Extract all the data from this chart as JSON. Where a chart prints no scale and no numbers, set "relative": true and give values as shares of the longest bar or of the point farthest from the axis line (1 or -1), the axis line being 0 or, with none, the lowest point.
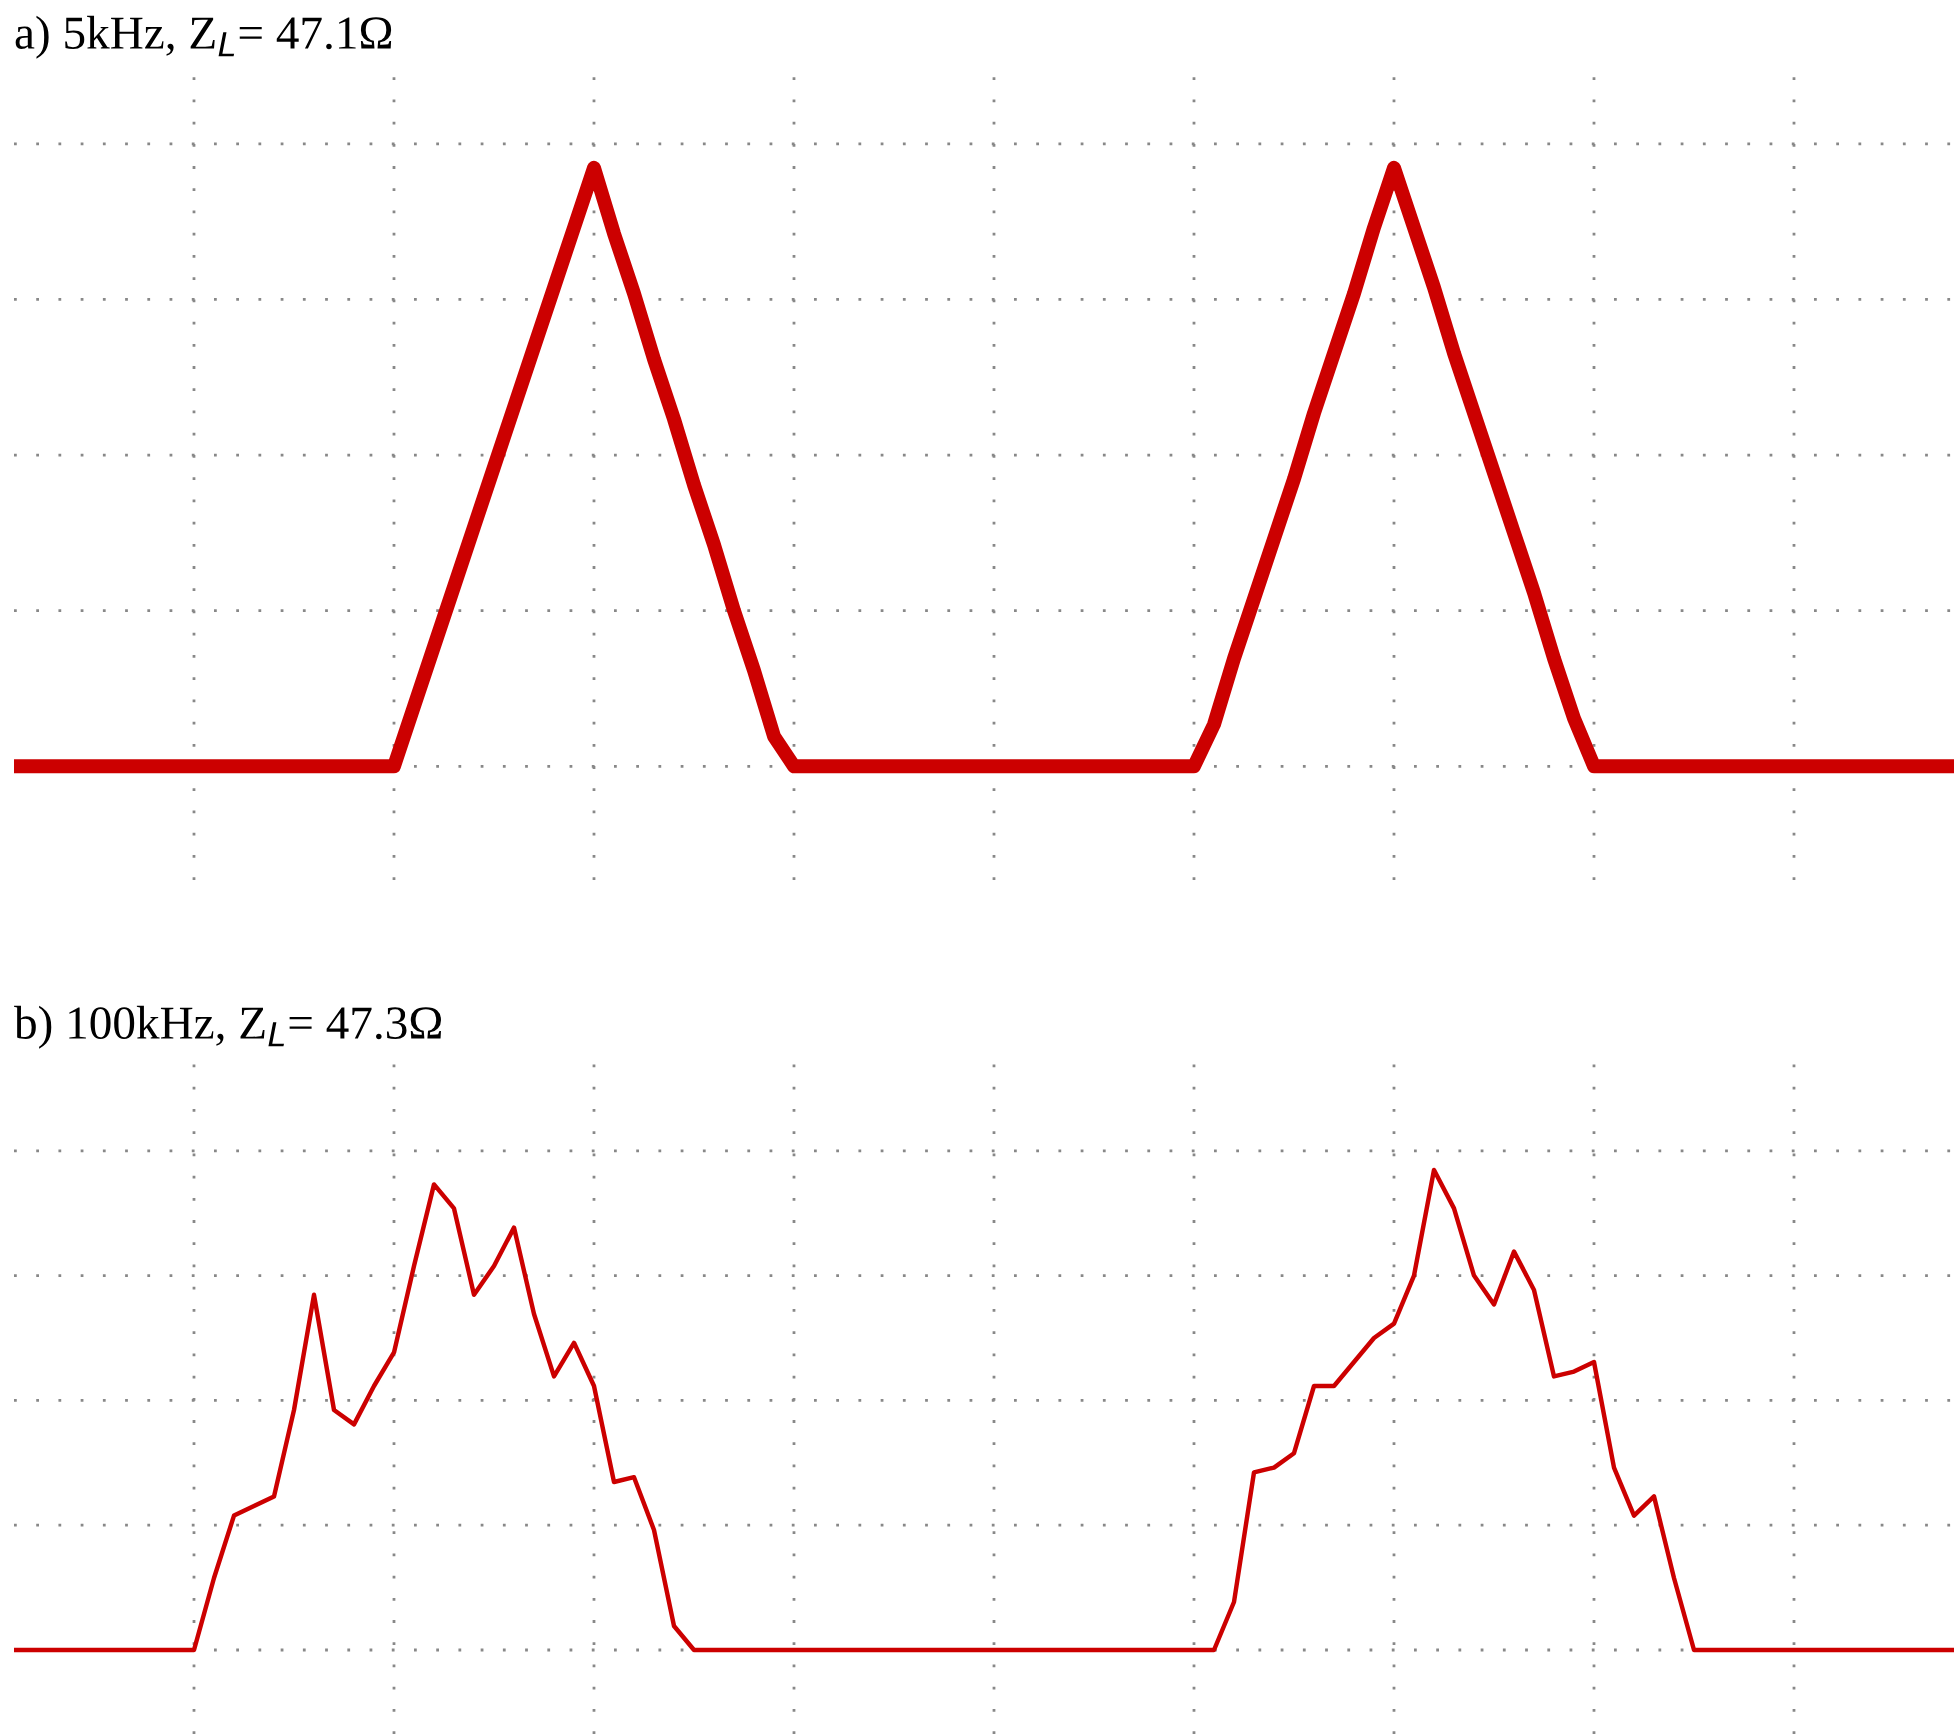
{
  "chart_data": [
    {
      "type": "line",
      "title": "a) 5kHz, Z$_{L}$= 47.1Ω",
      "relative": true,
      "grid": true,
      "line_style": "solid",
      "marker": "none",
      "tick_labels": false,
      "categories": [
        null,
        null,
        null,
        null,
        null,
        null,
        null,
        null,
        null,
        null,
        null,
        null,
        null,
        null,
        null,
        null,
        null,
        null,
        null,
        null,
        null,
        null,
        null,
        null,
        null,
        null,
        null,
        null,
        null,
        null,
        null,
        null,
        null,
        null,
        null,
        null,
        null,
        null,
        null,
        null,
        null,
        null,
        null,
        null,
        null,
        null,
        null,
        null,
        null,
        null,
        null,
        null,
        null,
        null,
        null,
        null,
        null,
        null,
        null,
        null,
        null,
        null,
        null,
        null,
        null,
        null,
        null,
        null,
        null,
        null,
        null,
        null,
        null,
        null,
        null,
        null,
        null,
        null,
        null,
        null,
        null,
        null,
        null,
        null,
        null,
        null,
        null,
        null,
        null,
        null,
        null,
        null,
        null,
        null,
        null,
        null,
        null,
        null
      ],
      "series": [
        {
          "color": "#cc0000",
          "values": [
            0,
            0,
            0,
            0,
            0,
            0,
            0,
            0,
            0,
            0,
            0,
            0,
            0,
            0,
            0,
            0,
            0,
            0,
            0,
            0,
            0.1,
            0.2,
            0.3,
            0.4,
            0.5,
            0.6,
            0.7,
            0.8,
            0.9,
            1,
            0.89,
            0.79,
            0.68,
            0.58,
            0.47,
            0.37,
            0.26,
            0.16,
            0.05,
            0,
            0,
            0,
            0,
            0,
            0,
            0,
            0,
            0,
            0,
            0,
            0,
            0,
            0,
            0,
            0,
            0,
            0,
            0,
            0,
            0,
            0.07,
            0.18,
            0.28,
            0.38,
            0.48,
            0.59,
            0.69,
            0.79,
            0.9,
            1,
            0.9,
            0.8,
            0.69,
            0.59,
            0.49,
            0.39,
            0.29,
            0.18,
            0.08,
            0,
            0,
            0,
            0,
            0,
            0,
            0,
            0,
            0,
            0,
            0,
            0,
            0,
            0,
            0,
            0,
            0,
            0,
            0
          ]
        }
      ]
    },
    {
      "type": "line",
      "title": "b) 100kHz, Z$_{L}$= 47.3Ω",
      "relative": true,
      "grid": true,
      "line_style": "solid",
      "marker": "none",
      "tick_labels": false,
      "categories": [
        null,
        null,
        null,
        null,
        null,
        null,
        null,
        null,
        null,
        null,
        null,
        null,
        null,
        null,
        null,
        null,
        null,
        null,
        null,
        null,
        null,
        null,
        null,
        null,
        null,
        null,
        null,
        null,
        null,
        null,
        null,
        null,
        null,
        null,
        null,
        null,
        null,
        null,
        null,
        null,
        null,
        null,
        null,
        null,
        null,
        null,
        null,
        null,
        null,
        null,
        null,
        null,
        null,
        null,
        null,
        null,
        null,
        null,
        null,
        null,
        null,
        null,
        null,
        null,
        null,
        null,
        null,
        null,
        null,
        null,
        null,
        null,
        null,
        null,
        null,
        null,
        null,
        null,
        null,
        null,
        null,
        null,
        null,
        null,
        null,
        null,
        null,
        null,
        null,
        null,
        null,
        null,
        null,
        null,
        null,
        null,
        null,
        null
      ],
      "series": [
        {
          "color": "#cc0000",
          "values": [
            0,
            0,
            0,
            0,
            0,
            0,
            0,
            0,
            0,
            0,
            0.15,
            0.28,
            0.3,
            0.32,
            0.5,
            0.74,
            0.5,
            0.47,
            0.55,
            0.62,
            0.8,
            0.97,
            0.92,
            0.74,
            0.8,
            0.88,
            0.7,
            0.57,
            0.64,
            0.55,
            0.35,
            0.36,
            0.25,
            0.05,
            0,
            0,
            0,
            0,
            0,
            0,
            0,
            0,
            0,
            0,
            0,
            0,
            0,
            0,
            0,
            0,
            0,
            0,
            0,
            0,
            0,
            0,
            0,
            0,
            0,
            0,
            0,
            0.1,
            0.37,
            0.38,
            0.41,
            0.55,
            0.55,
            0.6,
            0.65,
            0.68,
            0.78,
            1,
            0.92,
            0.78,
            0.72,
            0.83,
            0.75,
            0.57,
            0.58,
            0.6,
            0.38,
            0.28,
            0.32,
            0.15,
            0,
            0,
            0,
            0,
            0,
            0,
            0,
            0,
            0,
            0,
            0,
            0,
            0,
            0
          ]
        }
      ]
    }
  ]
}
